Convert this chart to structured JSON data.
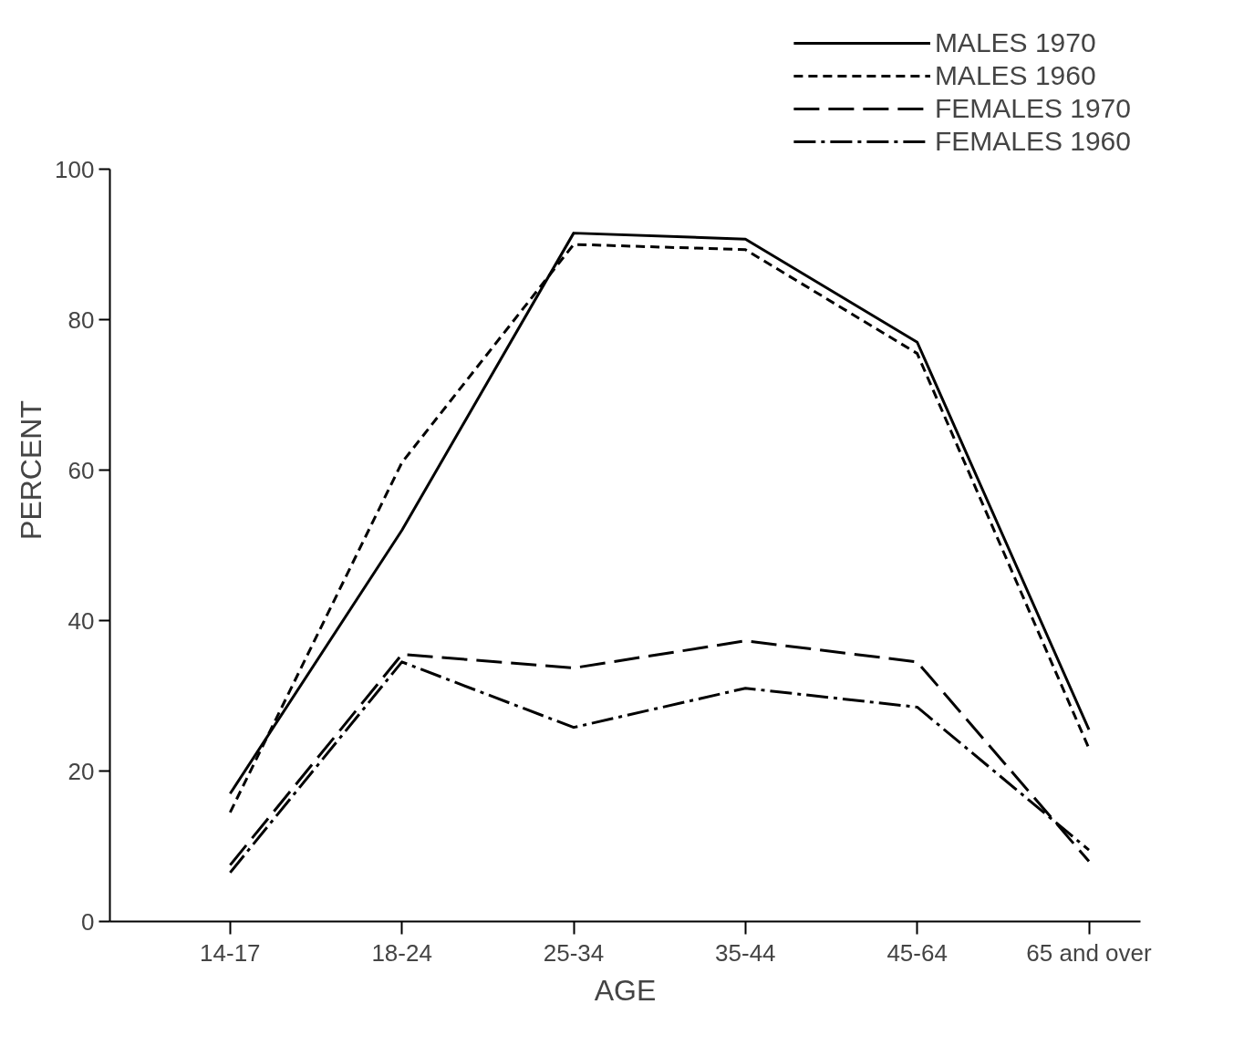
{
  "chart_data": {
    "type": "line",
    "xlabel": "AGE",
    "ylabel": "PERCENT",
    "categories": [
      "14-17",
      "18-24",
      "25-34",
      "35-44",
      "45-64",
      "65 and over"
    ],
    "ylim": [
      0,
      100
    ],
    "yticks": [
      0,
      20,
      40,
      60,
      80,
      100
    ],
    "grid": false,
    "legend": "top right",
    "marker": "none",
    "series": [
      {
        "name": "MALES 1970",
        "color": "#000000",
        "line_style": "solid",
        "values": [
          17,
          52,
          91.5,
          90.7,
          77,
          25.5
        ]
      },
      {
        "name": "MALES 1960",
        "color": "#000000",
        "line_style": "dashed",
        "values": [
          14.5,
          61,
          90,
          89.3,
          75.5,
          23
        ]
      },
      {
        "name": "FEMALES 1970",
        "color": "#000000",
        "line_style": "longdash",
        "values": [
          7.5,
          35.5,
          33.7,
          37.3,
          34.5,
          8
        ]
      },
      {
        "name": "FEMALES 1960",
        "color": "#000000",
        "line_style": "dashdot",
        "values": [
          6.5,
          34.5,
          25.8,
          31,
          28.5,
          9.5
        ]
      }
    ]
  }
}
